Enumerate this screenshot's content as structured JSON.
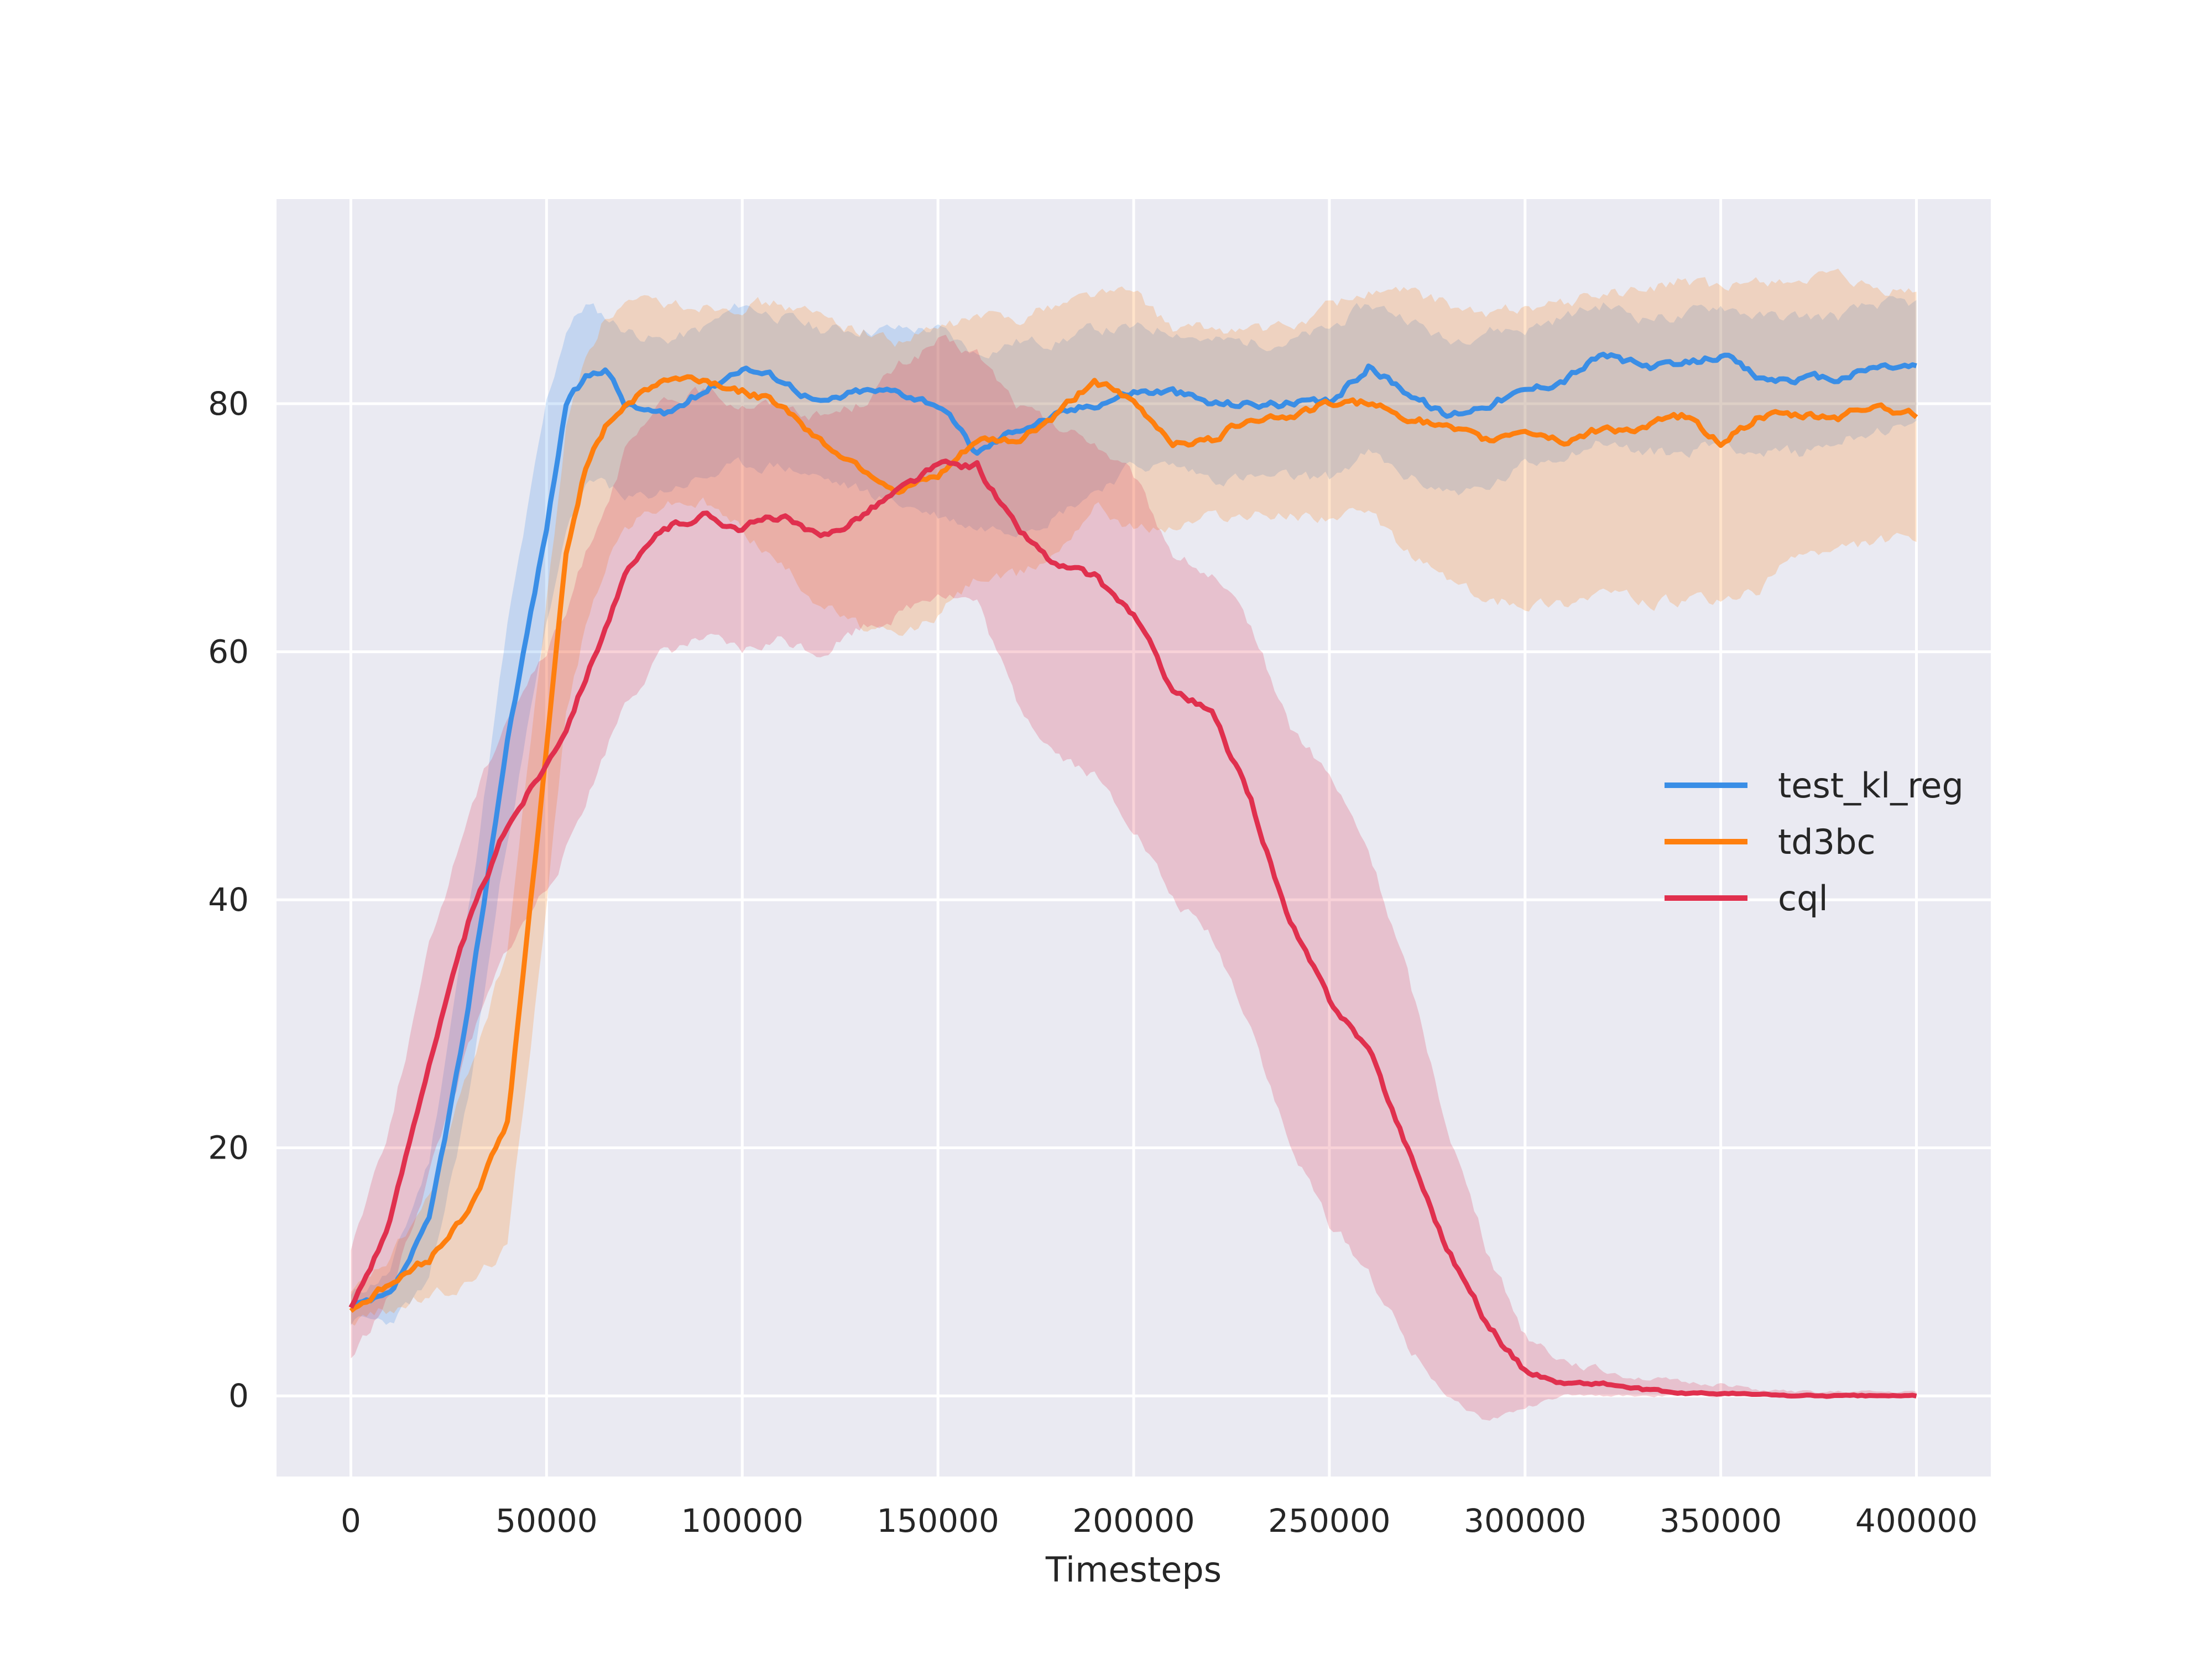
{
  "chart_data": {
    "type": "line",
    "title": "",
    "xlabel": "Timesteps",
    "ylabel": "",
    "xlim": [
      -19000,
      419000
    ],
    "ylim": [
      -6.5,
      96.5
    ],
    "xticks": [
      0,
      50000,
      100000,
      150000,
      200000,
      250000,
      300000,
      350000,
      400000
    ],
    "xtick_labels": [
      "0",
      "50000",
      "100000",
      "150000",
      "200000",
      "250000",
      "300000",
      "350000",
      "400000"
    ],
    "yticks": [
      0,
      20,
      40,
      60,
      80
    ],
    "ytick_labels": [
      "0",
      "20",
      "40",
      "60",
      "80"
    ],
    "grid": true,
    "legend_position": "center-right",
    "x": [
      0,
      10000,
      20000,
      30000,
      40000,
      50000,
      55000,
      60000,
      65000,
      70000,
      80000,
      90000,
      100000,
      110000,
      120000,
      130000,
      140000,
      150000,
      160000,
      170000,
      180000,
      190000,
      200000,
      210000,
      220000,
      230000,
      240000,
      250000,
      260000,
      270000,
      280000,
      290000,
      300000,
      310000,
      320000,
      330000,
      340000,
      350000,
      360000,
      370000,
      380000,
      390000,
      400000
    ],
    "series": [
      {
        "name": "test_kl_reg",
        "color": "#3a8ee6",
        "values": [
          7,
          8,
          14,
          31,
          53,
          70,
          80,
          82,
          83,
          80,
          79,
          81,
          83,
          82,
          80,
          81,
          81,
          80,
          76,
          78,
          79,
          80,
          81,
          81,
          80,
          80,
          80,
          80,
          83,
          81,
          79,
          80,
          81,
          82,
          84,
          83,
          83,
          84,
          82,
          82,
          82,
          83,
          83
        ],
        "lower": [
          6,
          6,
          9,
          24,
          45,
          62,
          70,
          73,
          74,
          72,
          73,
          74,
          75,
          75,
          74,
          73,
          72,
          71,
          70,
          70,
          71,
          73,
          75,
          75,
          74,
          74,
          74,
          74,
          76,
          74,
          73,
          73,
          75,
          76,
          77,
          76,
          76,
          77,
          76,
          76,
          77,
          78,
          78
        ],
        "upper": [
          8,
          10,
          19,
          39,
          62,
          80,
          86,
          88,
          87,
          86,
          85,
          86,
          88,
          87,
          86,
          86,
          86,
          86,
          84,
          85,
          85,
          86,
          86,
          86,
          85,
          85,
          85,
          86,
          88,
          87,
          85,
          86,
          86,
          87,
          88,
          87,
          87,
          88,
          87,
          87,
          87,
          88,
          88
        ]
      },
      {
        "name": "td3bc",
        "color": "#ff7f0e",
        "values": [
          7,
          9,
          11,
          15,
          22,
          52,
          68,
          75,
          78,
          80,
          82,
          82,
          81,
          80,
          77,
          75,
          73,
          74,
          77,
          77,
          79,
          82,
          80,
          77,
          77,
          79,
          79,
          80,
          80,
          79,
          78,
          77,
          78,
          77,
          78,
          78,
          79,
          77,
          79,
          79,
          79,
          80,
          79
        ],
        "lower": [
          6,
          7,
          8,
          9,
          12,
          40,
          55,
          62,
          67,
          70,
          72,
          72,
          70,
          67,
          64,
          62,
          61,
          63,
          66,
          66,
          68,
          72,
          70,
          70,
          71,
          71,
          71,
          71,
          71,
          68,
          66,
          64,
          64,
          64,
          65,
          64,
          64,
          64,
          65,
          68,
          68,
          69,
          69
        ],
        "upper": [
          8,
          11,
          16,
          26,
          36,
          64,
          78,
          84,
          87,
          88,
          88,
          88,
          88,
          88,
          87,
          86,
          85,
          86,
          87,
          87,
          88,
          89,
          89,
          86,
          86,
          86,
          86,
          88,
          89,
          89,
          88,
          87,
          88,
          88,
          89,
          89,
          90,
          89,
          90,
          90,
          90,
          89,
          89
        ]
      },
      {
        "name": "cql",
        "color": "#e0304e",
        "values": [
          7,
          14,
          27,
          38,
          46,
          51,
          54,
          58,
          62,
          66,
          70,
          71,
          70,
          71,
          69,
          71,
          73,
          75,
          75,
          70,
          67,
          66,
          63,
          57,
          55,
          48,
          38,
          32,
          28,
          20,
          12,
          6,
          2,
          1,
          1,
          0.5,
          0.2,
          0.2,
          0.1,
          0,
          0,
          0,
          0
        ],
        "lower": [
          3,
          8,
          18,
          28,
          36,
          41,
          44,
          48,
          52,
          56,
          60,
          61,
          60,
          61,
          60,
          62,
          63,
          65,
          64,
          56,
          52,
          50,
          46,
          40,
          37,
          30,
          20,
          14,
          10,
          4,
          0,
          -2,
          -1,
          0,
          0,
          0,
          0,
          0,
          0,
          0,
          0,
          0,
          0
        ],
        "upper": [
          12,
          22,
          36,
          47,
          55,
          60,
          63,
          68,
          72,
          76,
          80,
          81,
          80,
          80,
          79,
          80,
          83,
          85,
          84,
          80,
          78,
          77,
          74,
          68,
          66,
          62,
          54,
          50,
          44,
          34,
          22,
          12,
          5,
          3,
          2,
          1.5,
          1,
          1,
          0.5,
          0.3,
          0.3,
          0.3,
          0.3
        ]
      }
    ]
  }
}
